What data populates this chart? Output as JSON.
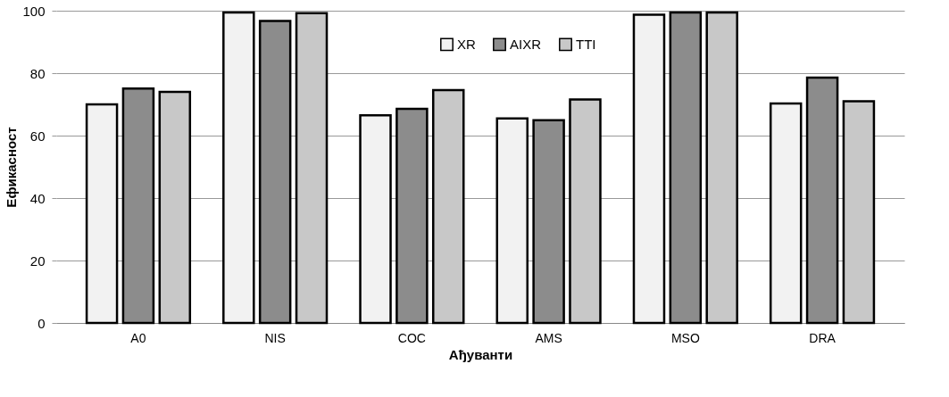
{
  "chart_data": {
    "type": "bar",
    "xlabel": "Ађуванти",
    "ylabel": "Ефикасност",
    "categories": [
      "A0",
      "NIS",
      "COC",
      "AMS",
      "MSO",
      "DRA"
    ],
    "series": [
      {
        "name": "XR",
        "color": "#f2f2f2",
        "values": [
          70.0,
          99.4,
          66.5,
          65.5,
          98.7,
          70.3
        ]
      },
      {
        "name": "AIXR",
        "color": "#8c8c8c",
        "values": [
          75.1,
          96.7,
          68.6,
          64.9,
          99.4,
          78.6
        ]
      },
      {
        "name": "TTI",
        "color": "#c8c8c8",
        "values": [
          74.0,
          99.2,
          74.6,
          71.6,
          99.4,
          71.0
        ]
      }
    ],
    "ylim": [
      0,
      100
    ],
    "yticks": [
      0,
      20,
      40,
      60,
      80,
      100
    ],
    "grid": "y",
    "legend": "top"
  }
}
